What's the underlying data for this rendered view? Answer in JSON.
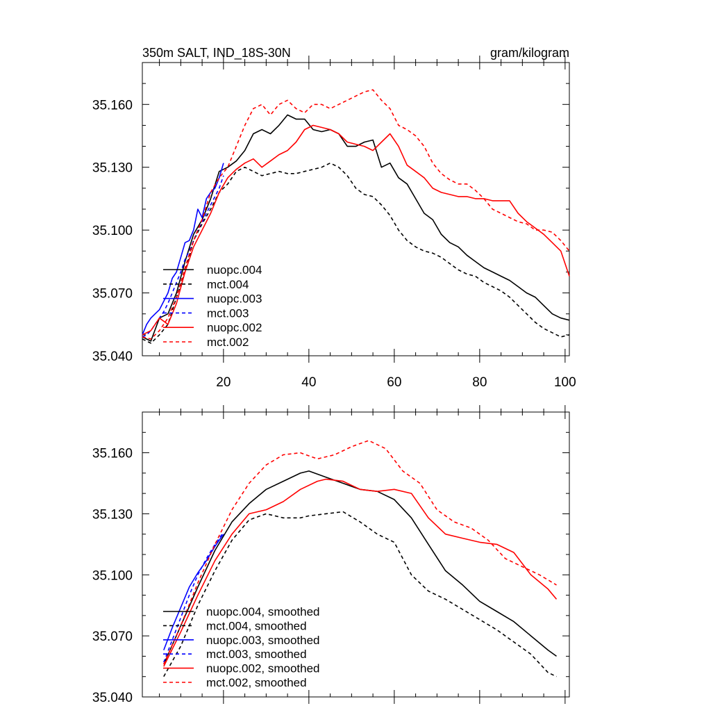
{
  "colors": {
    "black": "#000000",
    "blue": "#0000ff",
    "red": "#ff0000"
  },
  "chart_data": [
    {
      "type": "line",
      "title": "350m SALT, IND_18S-30N",
      "units": "gram/kilogram",
      "xlim": [
        1,
        101
      ],
      "ylim": [
        35.04,
        35.18
      ],
      "xticks": [
        20,
        40,
        60,
        80,
        100
      ],
      "xtick_labels": [
        "20",
        "40",
        "60",
        "80",
        "100"
      ],
      "yticks": [
        35.04,
        35.07,
        35.1,
        35.13,
        35.16
      ],
      "ytick_labels": [
        "35.040",
        "35.070",
        "35.100",
        "35.130",
        "35.160"
      ],
      "legend_position": "lower-left",
      "series": [
        {
          "name": "nuopc.004",
          "color": "black",
          "dash": false,
          "x": [
            1,
            3,
            5,
            7,
            9,
            11,
            13,
            15,
            17,
            19,
            21,
            23,
            25,
            27,
            29,
            31,
            33,
            35,
            37,
            39,
            41,
            43,
            45,
            47,
            49,
            51,
            53,
            55,
            57,
            59,
            61,
            63,
            65,
            67,
            69,
            71,
            73,
            75,
            77,
            79,
            81,
            83,
            85,
            87,
            89,
            91,
            93,
            95,
            97,
            99,
            101
          ],
          "y": [
            35.049,
            35.047,
            35.058,
            35.06,
            35.07,
            35.085,
            35.098,
            35.105,
            35.115,
            35.128,
            35.13,
            35.133,
            35.138,
            35.146,
            35.148,
            35.146,
            35.15,
            35.155,
            35.153,
            35.153,
            35.148,
            35.147,
            35.148,
            35.146,
            35.14,
            35.14,
            35.142,
            35.143,
            35.13,
            35.132,
            35.125,
            35.122,
            35.115,
            35.108,
            35.105,
            35.098,
            35.094,
            35.092,
            35.088,
            35.085,
            35.082,
            35.08,
            35.078,
            35.076,
            35.073,
            35.07,
            35.068,
            35.064,
            35.06,
            35.058,
            35.057
          ]
        },
        {
          "name": "mct.004",
          "color": "black",
          "dash": true,
          "x": [
            1,
            3,
            5,
            7,
            9,
            11,
            13,
            15,
            17,
            19,
            21,
            23,
            25,
            27,
            29,
            31,
            33,
            35,
            37,
            39,
            41,
            43,
            45,
            47,
            49,
            51,
            53,
            55,
            57,
            59,
            61,
            63,
            65,
            67,
            69,
            71,
            73,
            75,
            77,
            79,
            81,
            83,
            85,
            87,
            89,
            91,
            93,
            95,
            97,
            99,
            101
          ],
          "y": [
            35.048,
            35.046,
            35.05,
            35.055,
            35.068,
            35.08,
            35.095,
            35.103,
            35.11,
            35.118,
            35.122,
            35.128,
            35.13,
            35.128,
            35.126,
            35.127,
            35.128,
            35.127,
            35.127,
            35.128,
            35.129,
            35.13,
            35.132,
            35.13,
            35.126,
            35.12,
            35.117,
            35.116,
            35.112,
            35.107,
            35.1,
            35.095,
            35.092,
            35.09,
            35.089,
            35.087,
            35.084,
            35.081,
            35.079,
            35.078,
            35.075,
            35.073,
            35.071,
            35.068,
            35.064,
            35.06,
            35.056,
            35.053,
            35.051,
            35.049,
            35.05
          ]
        },
        {
          "name": "nuopc.003",
          "color": "blue",
          "dash": false,
          "x": [
            1,
            2,
            3,
            4,
            5,
            6,
            7,
            8,
            9,
            10,
            11,
            12,
            13,
            14,
            15,
            16,
            17,
            18,
            19,
            20
          ],
          "y": [
            35.05,
            35.055,
            35.058,
            35.06,
            35.062,
            35.066,
            35.07,
            35.077,
            35.08,
            35.087,
            35.094,
            35.095,
            35.1,
            35.11,
            35.106,
            35.115,
            35.118,
            35.12,
            35.125,
            35.132
          ]
        },
        {
          "name": "mct.003",
          "color": "blue",
          "dash": true,
          "x": [
            1,
            2,
            3,
            4,
            5,
            6,
            7,
            8,
            9,
            10,
            11,
            12,
            13,
            14,
            15,
            16,
            17,
            18,
            19,
            20
          ],
          "y": [
            35.049,
            35.05,
            35.052,
            35.055,
            35.058,
            35.061,
            35.065,
            35.07,
            35.075,
            35.08,
            35.086,
            35.09,
            35.095,
            35.1,
            35.104,
            35.108,
            35.112,
            35.116,
            35.12,
            35.126
          ]
        },
        {
          "name": "nuopc.002",
          "color": "red",
          "dash": false,
          "x": [
            1,
            3,
            5,
            7,
            9,
            11,
            13,
            15,
            17,
            19,
            21,
            23,
            25,
            27,
            29,
            31,
            33,
            35,
            37,
            39,
            41,
            43,
            45,
            47,
            49,
            51,
            53,
            55,
            57,
            59,
            61,
            63,
            65,
            67,
            69,
            71,
            73,
            75,
            77,
            79,
            81,
            83,
            85,
            87,
            89,
            91,
            93,
            95,
            97,
            99,
            101
          ],
          "y": [
            35.05,
            35.052,
            35.058,
            35.055,
            35.065,
            35.08,
            35.092,
            35.1,
            35.108,
            35.118,
            35.125,
            35.129,
            35.132,
            35.134,
            35.13,
            35.133,
            35.136,
            35.138,
            35.142,
            35.148,
            35.15,
            35.149,
            35.148,
            35.146,
            35.142,
            35.141,
            35.14,
            35.138,
            35.142,
            35.146,
            35.14,
            35.131,
            35.128,
            35.125,
            35.12,
            35.118,
            35.117,
            35.116,
            35.116,
            35.115,
            35.115,
            35.114,
            35.114,
            35.114,
            35.108,
            35.104,
            35.101,
            35.098,
            35.094,
            35.09,
            35.078
          ]
        },
        {
          "name": "mct.002",
          "color": "red",
          "dash": true,
          "x": [
            1,
            3,
            5,
            7,
            9,
            11,
            13,
            15,
            17,
            19,
            21,
            23,
            25,
            27,
            29,
            31,
            33,
            35,
            37,
            39,
            41,
            43,
            45,
            47,
            49,
            51,
            53,
            55,
            57,
            59,
            61,
            63,
            65,
            67,
            69,
            71,
            73,
            75,
            77,
            79,
            81,
            83,
            85,
            87,
            89,
            91,
            93,
            95,
            97,
            99,
            101
          ],
          "y": [
            35.049,
            35.048,
            35.052,
            35.058,
            35.068,
            35.082,
            35.095,
            35.105,
            35.118,
            35.125,
            35.13,
            35.14,
            35.15,
            35.158,
            35.16,
            35.155,
            35.16,
            35.162,
            35.158,
            35.156,
            35.16,
            35.16,
            35.158,
            35.16,
            35.162,
            35.164,
            35.166,
            35.167,
            35.162,
            35.158,
            35.15,
            35.148,
            35.145,
            35.14,
            35.132,
            35.127,
            35.124,
            35.122,
            35.122,
            35.119,
            35.115,
            35.11,
            35.108,
            35.106,
            35.104,
            35.103,
            35.1,
            35.1,
            35.099,
            35.095,
            35.09
          ]
        }
      ],
      "legend": [
        {
          "label": "nuopc.004",
          "color": "black",
          "dash": false
        },
        {
          "label": "mct.004",
          "color": "black",
          "dash": true
        },
        {
          "label": "nuopc.003",
          "color": "blue",
          "dash": false
        },
        {
          "label": "mct.003",
          "color": "blue",
          "dash": true
        },
        {
          "label": "nuopc.002",
          "color": "red",
          "dash": false
        },
        {
          "label": "mct.002",
          "color": "red",
          "dash": true
        }
      ]
    },
    {
      "type": "line",
      "title": "",
      "xlim": [
        1,
        101
      ],
      "ylim": [
        35.04,
        35.18
      ],
      "xticks": [
        20,
        40,
        60,
        80,
        100
      ],
      "xtick_labels": [],
      "yticks": [
        35.04,
        35.07,
        35.1,
        35.13,
        35.16
      ],
      "ytick_labels": [
        "35.040",
        "35.070",
        "35.100",
        "35.130",
        "35.160"
      ],
      "legend_position": "lower-left",
      "series": [
        {
          "name": "nuopc.004, smoothed",
          "color": "black",
          "dash": false,
          "x": [
            6,
            10,
            14,
            18,
            22,
            26,
            30,
            34,
            38,
            40,
            44,
            48,
            52,
            56,
            60,
            64,
            68,
            72,
            76,
            80,
            84,
            88,
            92,
            96,
            98
          ],
          "y": [
            35.056,
            35.075,
            35.094,
            35.112,
            35.126,
            35.135,
            35.142,
            35.146,
            35.15,
            35.151,
            35.148,
            35.145,
            35.142,
            35.141,
            35.137,
            35.128,
            35.115,
            35.102,
            35.095,
            35.087,
            35.082,
            35.077,
            35.07,
            35.063,
            35.06
          ]
        },
        {
          "name": "mct.004, smoothed",
          "color": "black",
          "dash": true,
          "x": [
            6,
            10,
            14,
            18,
            22,
            26,
            30,
            34,
            38,
            40,
            44,
            48,
            52,
            56,
            60,
            64,
            68,
            72,
            76,
            80,
            84,
            88,
            92,
            96,
            98
          ],
          "y": [
            35.05,
            35.065,
            35.085,
            35.102,
            35.117,
            35.127,
            35.13,
            35.128,
            35.128,
            35.129,
            35.13,
            35.131,
            35.126,
            35.12,
            35.116,
            35.1,
            35.092,
            35.088,
            35.083,
            35.078,
            35.073,
            35.067,
            35.061,
            35.052,
            35.05
          ]
        },
        {
          "name": "nuopc.003, smoothed",
          "color": "blue",
          "dash": false,
          "x": [
            6,
            8,
            10,
            12,
            14,
            16,
            18,
            20
          ],
          "y": [
            35.063,
            35.074,
            35.084,
            35.094,
            35.101,
            35.107,
            35.114,
            35.12
          ]
        },
        {
          "name": "mct.003, smoothed",
          "color": "blue",
          "dash": true,
          "x": [
            6,
            8,
            10,
            12,
            14,
            16,
            18,
            20
          ],
          "y": [
            35.057,
            35.068,
            35.079,
            35.09,
            35.1,
            35.108,
            35.115,
            35.121
          ]
        },
        {
          "name": "nuopc.002, smoothed",
          "color": "red",
          "dash": false,
          "x": [
            6,
            10,
            14,
            18,
            22,
            26,
            30,
            34,
            38,
            42,
            44,
            48,
            52,
            56,
            60,
            64,
            68,
            72,
            76,
            80,
            84,
            88,
            92,
            96,
            98
          ],
          "y": [
            35.055,
            35.072,
            35.09,
            35.107,
            35.12,
            35.13,
            35.132,
            35.136,
            35.142,
            35.146,
            35.147,
            35.146,
            35.142,
            35.141,
            35.142,
            35.14,
            35.128,
            35.12,
            35.118,
            35.116,
            35.115,
            35.111,
            35.1,
            35.093,
            35.088
          ]
        },
        {
          "name": "mct.002, smoothed",
          "color": "red",
          "dash": true,
          "x": [
            6,
            10,
            14,
            18,
            22,
            26,
            30,
            34,
            38,
            42,
            46,
            50,
            54,
            58,
            62,
            66,
            70,
            74,
            78,
            82,
            86,
            90,
            94,
            98
          ],
          "y": [
            35.056,
            35.075,
            35.096,
            35.115,
            35.132,
            35.145,
            35.154,
            35.159,
            35.16,
            35.157,
            35.159,
            35.163,
            35.166,
            35.162,
            35.151,
            35.145,
            35.132,
            35.126,
            35.123,
            35.117,
            35.108,
            35.104,
            35.1,
            35.095
          ]
        }
      ],
      "legend": [
        {
          "label": "nuopc.004, smoothed",
          "color": "black",
          "dash": false
        },
        {
          "label": "mct.004, smoothed",
          "color": "black",
          "dash": true
        },
        {
          "label": "nuopc.003, smoothed",
          "color": "blue",
          "dash": false
        },
        {
          "label": "mct.003, smoothed",
          "color": "blue",
          "dash": true
        },
        {
          "label": "nuopc.002, smoothed",
          "color": "red",
          "dash": false
        },
        {
          "label": "mct.002, smoothed",
          "color": "red",
          "dash": true
        }
      ]
    }
  ]
}
